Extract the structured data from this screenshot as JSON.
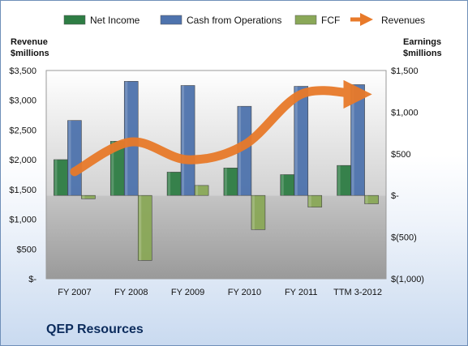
{
  "colors": {
    "net_income": "#2e7d44",
    "cash_from_operations": "#4e73ad",
    "fcf": "#8aa858",
    "revenues": "#e87a2a"
  },
  "company": "QEP Resources",
  "chart_data": {
    "type": "bar",
    "categories": [
      "FY 2007",
      "FY 2008",
      "FY 2009",
      "FY 2010",
      "FY 2011",
      "TTM 3-2012"
    ],
    "legend_position": "top",
    "grid": false,
    "left_axis": {
      "label_line1": "Revenue",
      "label_line2": "$millions",
      "range": [
        0,
        3500
      ],
      "ticks": [
        0,
        500,
        1000,
        1500,
        2000,
        2500,
        3000,
        3500
      ],
      "tick_labels": [
        "$-",
        "$500",
        "$1,000",
        "$1,500",
        "$2,000",
        "$2,500",
        "$3,000",
        "$3,500"
      ]
    },
    "right_axis": {
      "label_line1": "Earnings",
      "label_line2": "$millions",
      "range": [
        -1000,
        1500
      ],
      "ticks": [
        -1000,
        -500,
        0,
        500,
        1000,
        1500
      ],
      "tick_labels": [
        "$(1,000)",
        "$(500)",
        "$-",
        "$500",
        "$1,000",
        "$1,500"
      ]
    },
    "series": [
      {
        "name": "Net Income",
        "axis": "right",
        "kind": "bar",
        "values": [
          430,
          650,
          280,
          330,
          250,
          360
        ]
      },
      {
        "name": "Cash from Operations",
        "axis": "right",
        "kind": "bar",
        "values": [
          900,
          1370,
          1320,
          1070,
          1310,
          1330
        ]
      },
      {
        "name": "FCF",
        "axis": "right",
        "kind": "bar",
        "values": [
          -40,
          -780,
          120,
          -410,
          -140,
          -100
        ]
      },
      {
        "name": "Revenues",
        "axis": "left",
        "kind": "line",
        "values": [
          1800,
          2300,
          2000,
          2250,
          3100,
          3100
        ]
      }
    ]
  }
}
